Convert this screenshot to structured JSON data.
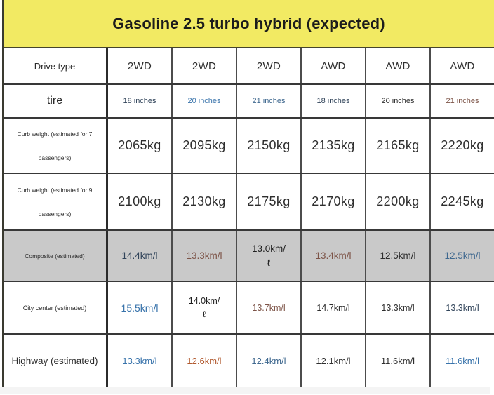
{
  "header": {
    "title": "Gasoline 2.5 turbo hybrid (expected)"
  },
  "colors": {
    "banner_bg": "#f2ea63",
    "highlight_row_bg": "#c9c9c9",
    "dark": "#2e2e2e",
    "black": "#1f1f1f",
    "navy": "#31445a",
    "blue": "#3873ab",
    "slate": "#3f688f",
    "brown": "#7d5448",
    "rust": "#b1592e"
  },
  "table": {
    "rows": [
      {
        "label": "Drive type",
        "highlight": false,
        "cells": [
          {
            "t": "2WD",
            "c": "dark"
          },
          {
            "t": "2WD",
            "c": "dark"
          },
          {
            "t": "2WD",
            "c": "dark"
          },
          {
            "t": "AWD",
            "c": "dark"
          },
          {
            "t": "AWD",
            "c": "dark"
          },
          {
            "t": "AWD",
            "c": "dark"
          }
        ]
      },
      {
        "label": "tire",
        "highlight": false,
        "cells": [
          {
            "t": "18 inches",
            "c": "navy"
          },
          {
            "t": "20 inches",
            "c": "blue"
          },
          {
            "t": "21 inches",
            "c": "slate"
          },
          {
            "t": "18 inches",
            "c": "navy"
          },
          {
            "t": "20 inches",
            "c": "dark"
          },
          {
            "t": "21 inches",
            "c": "brown"
          }
        ]
      },
      {
        "label": "Curb weight (estimated for 7\npassengers)",
        "highlight": false,
        "cells": [
          {
            "t": "2065kg",
            "c": "dark"
          },
          {
            "t": "2095kg",
            "c": "dark"
          },
          {
            "t": "2150kg",
            "c": "dark"
          },
          {
            "t": "2135kg",
            "c": "dark"
          },
          {
            "t": "2165kg",
            "c": "dark"
          },
          {
            "t": "2220kg",
            "c": "dark"
          }
        ]
      },
      {
        "label": "Curb weight (estimated for 9\npassengers)",
        "highlight": false,
        "cells": [
          {
            "t": "2100kg",
            "c": "dark"
          },
          {
            "t": "2130kg",
            "c": "dark"
          },
          {
            "t": "2175kg",
            "c": "dark"
          },
          {
            "t": "2170kg",
            "c": "dark"
          },
          {
            "t": "2200kg",
            "c": "dark"
          },
          {
            "t": "2245kg",
            "c": "dark"
          }
        ]
      },
      {
        "label": "Composite (estimated)",
        "highlight": true,
        "cells": [
          {
            "t": "14.4km/l",
            "c": "navy"
          },
          {
            "t": "13.3km/l",
            "c": "brown"
          },
          {
            "t": "13.0km/\nℓ",
            "c": "black"
          },
          {
            "t": "13.4km/l",
            "c": "brown"
          },
          {
            "t": "12.5km/l",
            "c": "dark"
          },
          {
            "t": "12.5km/l",
            "c": "slate"
          }
        ]
      },
      {
        "label": "City center (estimated)",
        "highlight": false,
        "cells": [
          {
            "t": "15.5km/l",
            "c": "blue"
          },
          {
            "t": "14.0km/\nℓ",
            "c": "black"
          },
          {
            "t": "13.7km/l",
            "c": "brown"
          },
          {
            "t": "14.7km/l",
            "c": "dark"
          },
          {
            "t": "13.3km/l",
            "c": "dark"
          },
          {
            "t": "13.3km/l",
            "c": "navy"
          }
        ]
      },
      {
        "label": "Highway (estimated)",
        "highlight": false,
        "cells": [
          {
            "t": "13.3km/l",
            "c": "blue"
          },
          {
            "t": "12.6km/l",
            "c": "rust"
          },
          {
            "t": "12.4km/l",
            "c": "slate"
          },
          {
            "t": "12.1km/l",
            "c": "dark"
          },
          {
            "t": "11.6km/l",
            "c": "dark"
          },
          {
            "t": "11.6km/l",
            "c": "blue"
          }
        ]
      }
    ]
  },
  "chart_data": {
    "type": "table",
    "title": "Gasoline 2.5 turbo hybrid (expected)",
    "columns": [
      "Drive type",
      "2WD",
      "2WD",
      "2WD",
      "AWD",
      "AWD",
      "AWD"
    ],
    "rows": [
      [
        "tire",
        "18 inches",
        "20 inches",
        "21 inches",
        "18 inches",
        "20 inches",
        "21 inches"
      ],
      [
        "Curb weight (estimated for 7 passengers)",
        "2065kg",
        "2095kg",
        "2150kg",
        "2135kg",
        "2165kg",
        "2220kg"
      ],
      [
        "Curb weight (estimated for 9 passengers)",
        "2100kg",
        "2130kg",
        "2175kg",
        "2170kg",
        "2200kg",
        "2245kg"
      ],
      [
        "Composite (estimated)",
        "14.4km/l",
        "13.3km/l",
        "13.0km/ℓ",
        "13.4km/l",
        "12.5km/l",
        "12.5km/l"
      ],
      [
        "City center (estimated)",
        "15.5km/l",
        "14.0km/ℓ",
        "13.7km/l",
        "14.7km/l",
        "13.3km/l",
        "13.3km/l"
      ],
      [
        "Highway (estimated)",
        "13.3km/l",
        "12.6km/l",
        "12.4km/l",
        "12.1km/l",
        "11.6km/l",
        "11.6km/l"
      ]
    ]
  }
}
